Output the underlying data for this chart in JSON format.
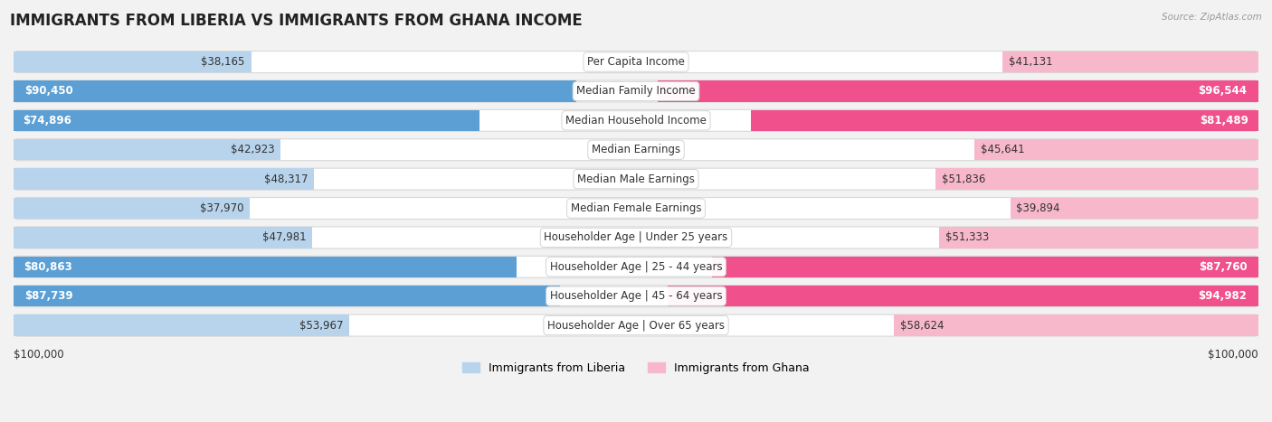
{
  "title": "IMMIGRANTS FROM LIBERIA VS IMMIGRANTS FROM GHANA INCOME",
  "source": "Source: ZipAtlas.com",
  "categories": [
    "Per Capita Income",
    "Median Family Income",
    "Median Household Income",
    "Median Earnings",
    "Median Male Earnings",
    "Median Female Earnings",
    "Householder Age | Under 25 years",
    "Householder Age | 25 - 44 years",
    "Householder Age | 45 - 64 years",
    "Householder Age | Over 65 years"
  ],
  "liberia_values": [
    38165,
    90450,
    74896,
    42923,
    48317,
    37970,
    47981,
    80863,
    87739,
    53967
  ],
  "ghana_values": [
    41131,
    96544,
    81489,
    45641,
    51836,
    39894,
    51333,
    87760,
    94982,
    58624
  ],
  "liberia_color_light": "#b8d4ec",
  "liberia_color_dark": "#5b9fd4",
  "ghana_color_light": "#f8b8cc",
  "ghana_color_dark": "#f0508c",
  "full_threshold": 70000,
  "max_value": 100000,
  "bg_color": "#f2f2f2",
  "row_bg_color": "#ffffff",
  "row_border_color": "#d8d8d8",
  "label_fontsize": 8.5,
  "title_fontsize": 12,
  "legend_fontsize": 9,
  "axis_label_left": "$100,000",
  "axis_label_right": "$100,000",
  "legend_label_liberia": "Immigrants from Liberia",
  "legend_label_ghana": "Immigrants from Ghana"
}
